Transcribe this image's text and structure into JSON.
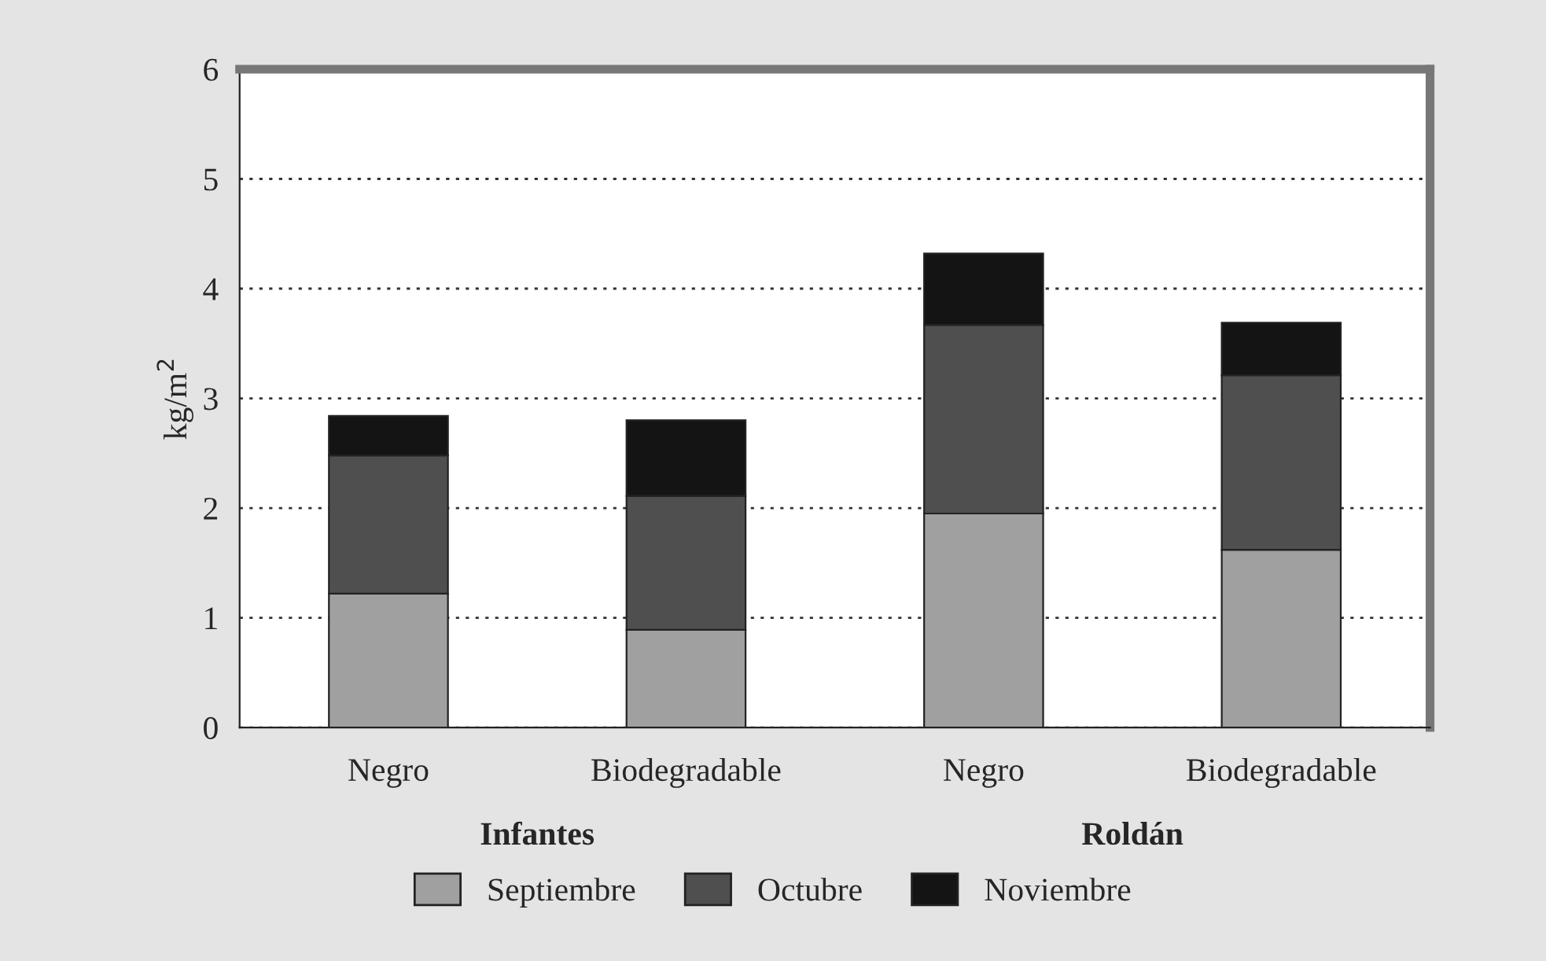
{
  "chart_data": {
    "type": "bar",
    "stacked": true,
    "ylabel": "kg/m$^{2}$",
    "categories": [
      "Negro",
      "Biodegradable",
      "Negro",
      "Biodegradable"
    ],
    "series": [
      {
        "name": "Septiembre",
        "color": "#a0a0a0",
        "values": [
          1.22,
          0.89,
          1.95,
          1.62
        ]
      },
      {
        "name": "Octubre",
        "color": "#4f4f4f",
        "values": [
          1.26,
          1.22,
          1.72,
          1.59
        ]
      },
      {
        "name": "Noviembre",
        "color": "#141414",
        "values": [
          0.36,
          0.69,
          0.65,
          0.48
        ]
      }
    ],
    "annotations": [
      "Infantes",
      "Roldán"
    ],
    "ylim": [
      0,
      6
    ],
    "yticks": [
      0,
      1,
      2,
      3,
      4,
      5,
      6
    ],
    "grid": "y",
    "legend": "bottom"
  }
}
